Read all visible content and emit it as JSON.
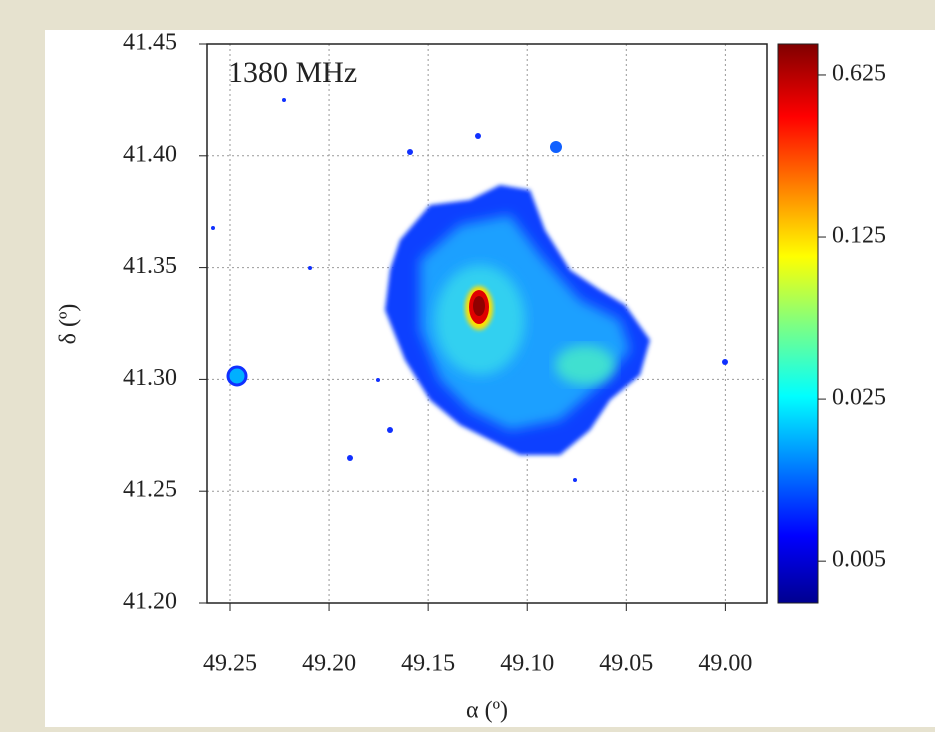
{
  "chart_data": {
    "type": "image",
    "annotation": "1380 MHz",
    "xlabel": "α (º)",
    "ylabel": "δ (º)",
    "xlim": [
      49.2616,
      48.979
    ],
    "ylim": [
      41.2,
      41.45
    ],
    "xticks": [
      49.25,
      {
        "value": 49.2,
        "label": "49.20"
      },
      49.15,
      {
        "value": 49.1,
        "label": "49.10"
      },
      49.05,
      {
        "value": 49.0,
        "label": "49.00"
      }
    ],
    "yticks": [
      {
        "value": 41.2,
        "label": "41.20"
      },
      41.25,
      {
        "value": 41.3,
        "label": "41.30"
      },
      41.35,
      {
        "value": 41.4,
        "label": "41.40"
      },
      41.45
    ],
    "grid": true,
    "colorbar": {
      "lim": [
        0.0033,
        0.85
      ],
      "log": true,
      "ticks": [
        0.005,
        0.025,
        0.125,
        0.625
      ]
    }
  }
}
